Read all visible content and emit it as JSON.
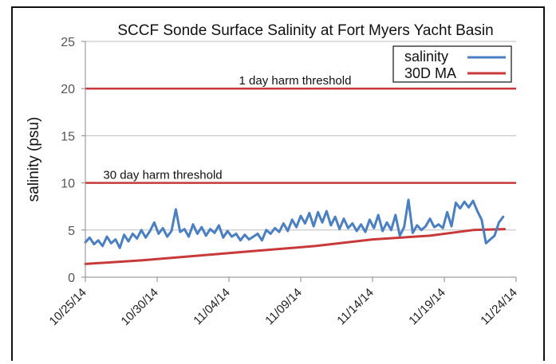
{
  "chart_data": {
    "type": "line",
    "title": "SCCF Sonde Surface Salinity at Fort Myers Yacht Basin",
    "xlabel": "",
    "ylabel": "salinity (psu)",
    "ylim": [
      0,
      25
    ],
    "yticks": [
      "0",
      "5",
      "10",
      "15",
      "20",
      "25"
    ],
    "xlim": [
      "10/25/14",
      "11/24/14"
    ],
    "xticks": [
      "10/25/14",
      "10/30/14",
      "11/04/14",
      "11/09/14",
      "11/14/14",
      "11/19/14",
      "11/24/14"
    ],
    "grid": true,
    "legend_position": "top-right",
    "series": [
      {
        "name": "salinity",
        "color": "#4a7fc1",
        "x_days": [
          0,
          0.3,
          0.6,
          0.9,
          1.2,
          1.5,
          1.8,
          2.1,
          2.4,
          2.7,
          3.0,
          3.3,
          3.6,
          3.9,
          4.2,
          4.5,
          4.8,
          5.1,
          5.4,
          5.7,
          6.0,
          6.3,
          6.6,
          6.9,
          7.2,
          7.5,
          7.8,
          8.1,
          8.4,
          8.7,
          9.0,
          9.3,
          9.6,
          9.9,
          10.2,
          10.5,
          10.8,
          11.1,
          11.4,
          11.7,
          12.0,
          12.3,
          12.6,
          12.9,
          13.2,
          13.5,
          13.8,
          14.1,
          14.4,
          14.7,
          15.0,
          15.3,
          15.6,
          15.9,
          16.2,
          16.5,
          16.8,
          17.1,
          17.4,
          17.7,
          18.0,
          18.3,
          18.6,
          18.9,
          19.2,
          19.5,
          19.8,
          20.1,
          20.4,
          20.7,
          21.0,
          21.3,
          21.6,
          21.9,
          22.2,
          22.5,
          22.8,
          23.1,
          23.4,
          23.7,
          24.0,
          24.3,
          24.6,
          24.9,
          25.2,
          25.5,
          25.8,
          26.1,
          26.4,
          26.7,
          27.0,
          27.3,
          27.6,
          27.9,
          28.2,
          28.5,
          28.8,
          29.1
        ],
        "values": [
          3.7,
          4.2,
          3.5,
          3.9,
          3.3,
          4.3,
          3.6,
          4.0,
          3.1,
          4.5,
          3.8,
          4.6,
          4.1,
          5.0,
          4.2,
          4.9,
          5.8,
          4.6,
          5.2,
          4.3,
          4.9,
          7.2,
          4.8,
          5.1,
          4.3,
          5.6,
          4.6,
          5.3,
          4.4,
          5.1,
          4.7,
          5.5,
          4.2,
          4.9,
          4.3,
          4.6,
          3.9,
          4.5,
          4.0,
          4.3,
          4.6,
          3.9,
          5.0,
          4.6,
          5.2,
          4.8,
          5.7,
          4.9,
          6.1,
          5.3,
          6.5,
          5.7,
          6.8,
          5.4,
          6.9,
          5.8,
          7.0,
          5.5,
          6.4,
          5.1,
          6.2,
          5.2,
          5.7,
          4.9,
          5.6,
          4.8,
          6.1,
          5.2,
          6.6,
          4.9,
          5.8,
          5.0,
          6.6,
          4.4,
          5.3,
          8.2,
          4.7,
          5.5,
          5.0,
          5.4,
          6.2,
          5.3,
          5.6,
          5.2,
          6.9,
          5.4,
          7.9,
          7.3,
          8.0,
          7.4,
          8.1,
          7.0,
          6.1,
          3.6,
          4.0,
          4.4,
          5.8,
          6.4
        ],
        "line_width": 3
      },
      {
        "name": "30D MA",
        "color": "#c83a3a",
        "x_days": [
          0,
          4,
          8,
          12,
          16,
          20,
          24,
          27,
          29.2
        ],
        "values": [
          1.4,
          1.8,
          2.3,
          2.8,
          3.3,
          4.0,
          4.4,
          5.0,
          5.1
        ],
        "line_width": 3
      }
    ],
    "reference_lines": [
      {
        "y": 20,
        "label": "1 day harm threshold",
        "color": "#c83a3a"
      },
      {
        "y": 10,
        "label": "30 day harm threshold",
        "color": "#c83a3a"
      }
    ]
  }
}
